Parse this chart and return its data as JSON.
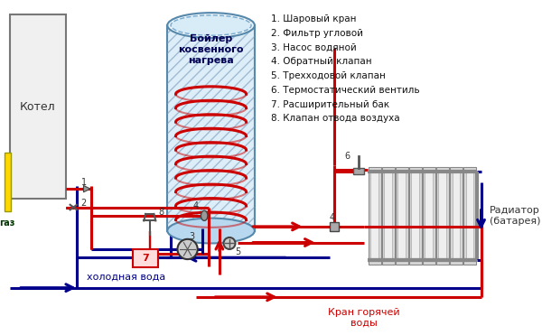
{
  "bg_color": "#ffffff",
  "red": "#cc0000",
  "blue": "#00008B",
  "yellow": "#FFD700",
  "gray": "#888888",
  "legend_items": [
    "1. Шаровый кран",
    "2. Фильтр угловой",
    "3. Насос водяной",
    "4. Обратный клапан",
    "5. Трехходовой клапан",
    "6. Термостатический вентиль",
    "7. Расширительный бак",
    "8. Клапан отвода воздуха"
  ],
  "label_kotel": "Котел",
  "label_boiler": "Бойлер\nкосвенного\nнагрева",
  "label_gaz": "газ",
  "label_cold": "холодная вода",
  "label_hot": "Кран горячей\nводы",
  "label_radiator": "Радиатор\n(батарея)"
}
